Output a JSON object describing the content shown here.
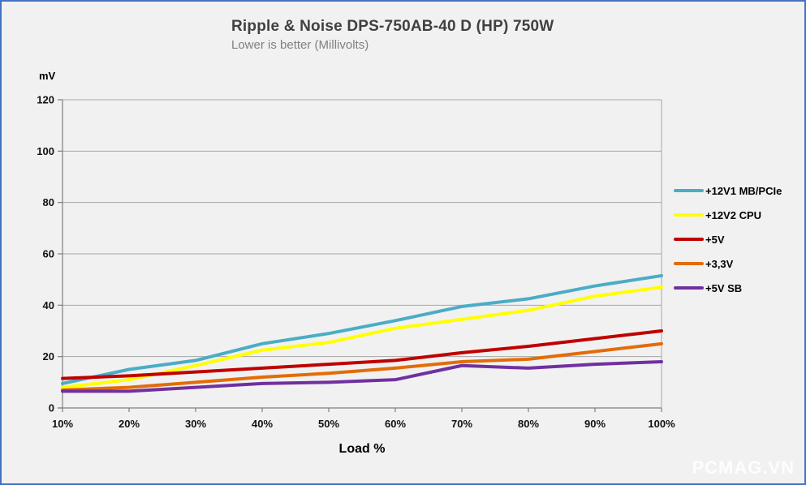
{
  "page": {
    "watermark": "PCMAG.VN"
  },
  "chart_data": {
    "type": "line",
    "title": "Ripple & Noise DPS-750AB-40 D (HP) 750W",
    "subtitle": "Lower is better (Millivolts)",
    "y_axis_unit": "mV",
    "xlabel": "Load %",
    "categories": [
      "10%",
      "20%",
      "30%",
      "40%",
      "50%",
      "60%",
      "70%",
      "80%",
      "90%",
      "100%"
    ],
    "y_ticks": [
      0,
      20,
      40,
      60,
      80,
      100,
      120
    ],
    "ylim": [
      0,
      120
    ],
    "grid": true,
    "legend_position": "right",
    "series": [
      {
        "name": "+12V1 MB/PCIe",
        "color": "#4BACC6",
        "values": [
          9.5,
          15,
          18.5,
          25,
          29,
          34,
          39.5,
          42.5,
          47.5,
          51.5
        ]
      },
      {
        "name": "+12V2 CPU",
        "color": "#FFFF00",
        "values": [
          8,
          11,
          16.5,
          22.5,
          25.5,
          31,
          34.5,
          38,
          43.5,
          47
        ]
      },
      {
        "name": "+5V",
        "color": "#C00000",
        "values": [
          11.5,
          12.5,
          14,
          15.5,
          17,
          18.5,
          21.5,
          24,
          27,
          30
        ]
      },
      {
        "name": "+3,3V",
        "color": "#E36C09",
        "values": [
          7,
          8,
          10,
          12,
          13.5,
          15.5,
          18,
          19,
          22,
          25
        ]
      },
      {
        "name": "+5V SB",
        "color": "#7030A0",
        "values": [
          6.5,
          6.5,
          8,
          9.5,
          10,
          11,
          16.5,
          15.5,
          17,
          18
        ]
      }
    ],
    "colors": {
      "grid": "#A6A6A6",
      "axis": "#7F7F7F",
      "frame_border": "#4472C4",
      "background": "#F1F1F1",
      "title_text": "#404040",
      "subtitle_text": "#808080"
    }
  }
}
